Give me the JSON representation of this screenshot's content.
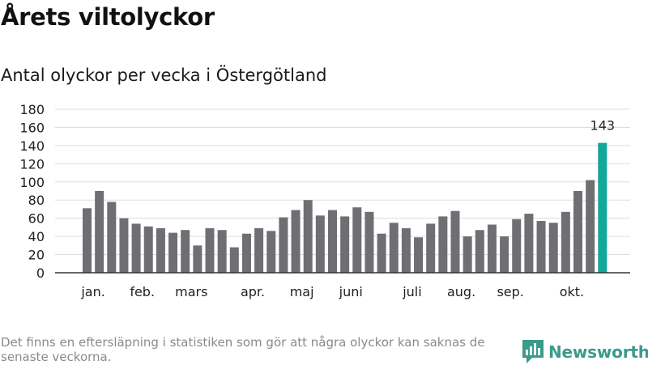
{
  "header": {
    "title": "Årets viltolyckor",
    "subtitle": "Antal olyckor per vecka i Östergötland"
  },
  "footer": {
    "note": "Det finns en eftersläpning i statistiken som gör att några olyckor kan saknas de senaste veckorna.",
    "brand": "Newsworthy"
  },
  "colors": {
    "bar": "#6f6e73",
    "highlight": "#13a69a",
    "grid": "#dddddd",
    "axis": "#333333",
    "brand": "#3a9a8c"
  },
  "chart_data": {
    "type": "bar",
    "title": "Årets viltolyckor",
    "subtitle": "Antal olyckor per vecka i Östergötland",
    "xlabel": "",
    "ylabel": "",
    "ylim": [
      0,
      180
    ],
    "yticks": [
      0,
      20,
      40,
      60,
      80,
      100,
      120,
      140,
      160,
      180
    ],
    "grid": true,
    "values": [
      71,
      90,
      78,
      60,
      54,
      51,
      49,
      44,
      47,
      30,
      49,
      47,
      28,
      43,
      49,
      46,
      61,
      69,
      80,
      63,
      69,
      62,
      72,
      67,
      43,
      55,
      49,
      39,
      54,
      62,
      68,
      40,
      47,
      53,
      40,
      59,
      65,
      57,
      55,
      67,
      90,
      102,
      143
    ],
    "highlight_index": 42,
    "highlight_label": "143",
    "month_labels": [
      {
        "label": "jan.",
        "index": 0.5
      },
      {
        "label": "feb.",
        "index": 4.5
      },
      {
        "label": "mars",
        "index": 8.5
      },
      {
        "label": "apr.",
        "index": 13.5
      },
      {
        "label": "maj",
        "index": 17.5
      },
      {
        "label": "juni",
        "index": 21.5
      },
      {
        "label": "juli",
        "index": 26.5
      },
      {
        "label": "aug.",
        "index": 30.5
      },
      {
        "label": "sep.",
        "index": 34.5
      },
      {
        "label": "okt.",
        "index": 39.5
      }
    ]
  }
}
